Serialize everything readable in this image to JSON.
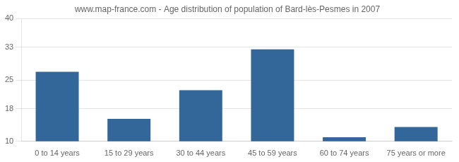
{
  "chart_data": {
    "type": "bar",
    "title": "www.map-france.com - Age distribution of population of Bard-lès-Pesmes in 2007",
    "categories": [
      "0 to 14 years",
      "15 to 29 years",
      "30 to 44 years",
      "45 to 59 years",
      "60 to 74 years",
      "75 years or more"
    ],
    "values": [
      27,
      15.5,
      22.5,
      32.5,
      11,
      13.5
    ],
    "color": "#336699",
    "ylim": [
      10,
      40
    ],
    "yticks": [
      10,
      18,
      25,
      33,
      40
    ],
    "grid": true
  }
}
